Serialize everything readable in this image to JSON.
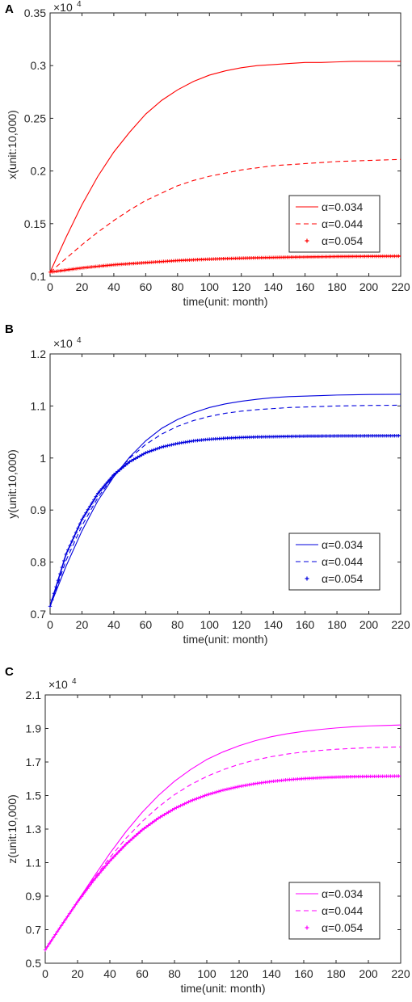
{
  "chart_data": [
    {
      "panel": "A",
      "type": "line",
      "xlabel": "time(unit: month)",
      "ylabel": "x(unit:10,000)",
      "multiplier_base": "×10",
      "multiplier_exp": "4",
      "xlim": [
        0,
        220
      ],
      "ylim": [
        0.1,
        0.35
      ],
      "xticks": [
        0,
        20,
        40,
        60,
        80,
        100,
        120,
        140,
        160,
        180,
        200,
        220
      ],
      "yticks": [
        0.1,
        0.15,
        0.2,
        0.25,
        0.3,
        0.35
      ],
      "color": "#ff0000",
      "legend": {
        "position": "lower-right"
      },
      "series": [
        {
          "name": "α=0.034",
          "style": "solid",
          "x": [
            0,
            10,
            20,
            30,
            40,
            50,
            60,
            70,
            80,
            90,
            100,
            110,
            120,
            130,
            140,
            150,
            160,
            170,
            180,
            190,
            200,
            210,
            220
          ],
          "y": [
            0.104,
            0.137,
            0.168,
            0.195,
            0.218,
            0.237,
            0.254,
            0.267,
            0.277,
            0.285,
            0.291,
            0.295,
            0.298,
            0.3,
            0.301,
            0.302,
            0.303,
            0.303,
            0.3035,
            0.304,
            0.304,
            0.304,
            0.304
          ]
        },
        {
          "name": "α=0.044",
          "style": "dashed",
          "x": [
            0,
            10,
            20,
            30,
            40,
            50,
            60,
            70,
            80,
            90,
            100,
            110,
            120,
            130,
            140,
            150,
            160,
            170,
            180,
            190,
            200,
            210,
            220
          ],
          "y": [
            0.104,
            0.117,
            0.13,
            0.142,
            0.153,
            0.163,
            0.172,
            0.179,
            0.186,
            0.191,
            0.195,
            0.198,
            0.201,
            0.203,
            0.205,
            0.206,
            0.207,
            0.208,
            0.209,
            0.2095,
            0.21,
            0.2105,
            0.211
          ]
        },
        {
          "name": "α=0.054",
          "style": "plus",
          "x": [
            0,
            10,
            20,
            30,
            40,
            50,
            60,
            70,
            80,
            90,
            100,
            110,
            120,
            130,
            140,
            150,
            160,
            170,
            180,
            190,
            200,
            210,
            220
          ],
          "y": [
            0.104,
            0.106,
            0.108,
            0.1095,
            0.111,
            0.112,
            0.113,
            0.114,
            0.115,
            0.1157,
            0.1163,
            0.1168,
            0.1172,
            0.1176,
            0.1179,
            0.1182,
            0.1184,
            0.1186,
            0.1188,
            0.1189,
            0.119,
            0.1191,
            0.1192
          ]
        }
      ]
    },
    {
      "panel": "B",
      "type": "line",
      "xlabel": "time(unit: month)",
      "ylabel": "y(unit:10,000)",
      "multiplier_base": "×10",
      "multiplier_exp": "4",
      "xlim": [
        0,
        220
      ],
      "ylim": [
        0.7,
        1.2
      ],
      "xticks": [
        0,
        20,
        40,
        60,
        80,
        100,
        120,
        140,
        160,
        180,
        200,
        220
      ],
      "yticks": [
        0.7,
        0.8,
        0.9,
        1,
        1.1,
        1.2
      ],
      "color": "#0000dd",
      "legend": {
        "position": "lower-right"
      },
      "series": [
        {
          "name": "α=0.034",
          "style": "solid",
          "x": [
            0,
            10,
            20,
            30,
            40,
            50,
            60,
            70,
            80,
            90,
            100,
            110,
            120,
            130,
            140,
            150,
            160,
            170,
            180,
            190,
            200,
            210,
            220
          ],
          "y": [
            0.715,
            0.792,
            0.86,
            0.918,
            0.964,
            1.002,
            1.033,
            1.057,
            1.074,
            1.087,
            1.097,
            1.104,
            1.109,
            1.113,
            1.116,
            1.118,
            1.119,
            1.12,
            1.121,
            1.1215,
            1.122,
            1.1222,
            1.1225
          ]
        },
        {
          "name": "α=0.044",
          "style": "dashed",
          "x": [
            0,
            10,
            20,
            30,
            40,
            50,
            60,
            70,
            80,
            90,
            100,
            110,
            120,
            130,
            140,
            150,
            160,
            170,
            180,
            190,
            200,
            210,
            220
          ],
          "y": [
            0.715,
            0.803,
            0.87,
            0.924,
            0.966,
            1.0,
            1.026,
            1.046,
            1.061,
            1.072,
            1.08,
            1.086,
            1.09,
            1.093,
            1.095,
            1.097,
            1.098,
            1.099,
            1.1,
            1.1005,
            1.101,
            1.1012,
            1.1015
          ]
        },
        {
          "name": "α=0.054",
          "style": "plus",
          "x": [
            0,
            10,
            20,
            30,
            40,
            50,
            60,
            70,
            80,
            90,
            100,
            110,
            120,
            130,
            140,
            150,
            160,
            170,
            180,
            190,
            200,
            210,
            220
          ],
          "y": [
            0.715,
            0.815,
            0.882,
            0.932,
            0.968,
            0.993,
            1.01,
            1.021,
            1.028,
            1.033,
            1.036,
            1.038,
            1.0395,
            1.0405,
            1.041,
            1.0415,
            1.042,
            1.0422,
            1.0424,
            1.0425,
            1.0426,
            1.0427,
            1.0428
          ]
        }
      ]
    },
    {
      "panel": "C",
      "type": "line",
      "xlabel": "time(unit: month)",
      "ylabel": "z(unit:10,000)",
      "multiplier_base": "×10",
      "multiplier_exp": "4",
      "xlim": [
        0,
        220
      ],
      "ylim": [
        0.5,
        2.1
      ],
      "xticks": [
        0,
        20,
        40,
        60,
        80,
        100,
        120,
        140,
        160,
        180,
        200,
        220
      ],
      "yticks": [
        0.5,
        0.7,
        0.9,
        1.1,
        1.3,
        1.5,
        1.7,
        1.9,
        2.1
      ],
      "color": "#ff00ff",
      "legend": {
        "position": "lower-right"
      },
      "series": [
        {
          "name": "α=0.034",
          "style": "solid",
          "x": [
            0,
            10,
            20,
            30,
            40,
            50,
            60,
            70,
            80,
            90,
            100,
            110,
            120,
            130,
            140,
            150,
            160,
            170,
            180,
            190,
            200,
            210,
            220
          ],
          "y": [
            0.58,
            0.725,
            0.87,
            1.015,
            1.155,
            1.285,
            1.4,
            1.5,
            1.585,
            1.655,
            1.715,
            1.76,
            1.797,
            1.827,
            1.851,
            1.869,
            1.883,
            1.894,
            1.903,
            1.91,
            1.915,
            1.918,
            1.921
          ]
        },
        {
          "name": "α=0.044",
          "style": "dashed",
          "x": [
            0,
            10,
            20,
            30,
            40,
            50,
            60,
            70,
            80,
            90,
            100,
            110,
            120,
            130,
            140,
            150,
            160,
            170,
            180,
            190,
            200,
            210,
            220
          ],
          "y": [
            0.58,
            0.725,
            0.868,
            1.005,
            1.13,
            1.245,
            1.345,
            1.432,
            1.505,
            1.565,
            1.614,
            1.654,
            1.686,
            1.712,
            1.732,
            1.748,
            1.76,
            1.769,
            1.776,
            1.781,
            1.785,
            1.788,
            1.79
          ]
        },
        {
          "name": "α=0.054",
          "style": "plus",
          "x": [
            0,
            10,
            20,
            30,
            40,
            50,
            60,
            70,
            80,
            90,
            100,
            110,
            120,
            130,
            140,
            150,
            160,
            170,
            180,
            190,
            200,
            210,
            220
          ],
          "y": [
            0.58,
            0.725,
            0.866,
            0.995,
            1.11,
            1.21,
            1.295,
            1.365,
            1.422,
            1.468,
            1.504,
            1.532,
            1.554,
            1.571,
            1.584,
            1.594,
            1.601,
            1.606,
            1.61,
            1.6125,
            1.614,
            1.615,
            1.616
          ]
        }
      ]
    }
  ]
}
